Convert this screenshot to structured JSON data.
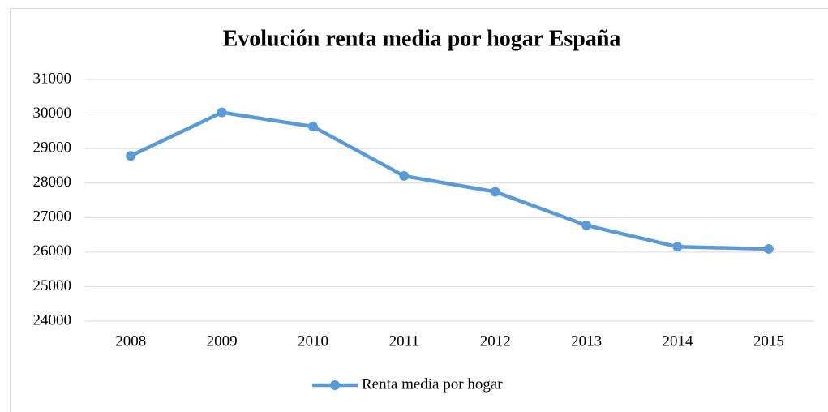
{
  "chart_data": {
    "type": "line",
    "title": "Evolución renta media por hogar España",
    "categories": [
      "2008",
      "2009",
      "2010",
      "2011",
      "2012",
      "2013",
      "2014",
      "2015"
    ],
    "series": [
      {
        "name": "Renta media por hogar",
        "color": "#5b9bd5",
        "values": [
          28787,
          30045,
          29634,
          28206,
          27747,
          26775,
          26154,
          26092
        ]
      }
    ],
    "ylim": [
      24000,
      31000
    ],
    "yticks": [
      24000,
      25000,
      26000,
      27000,
      28000,
      29000,
      30000,
      31000
    ],
    "grid": true,
    "legend": "bottom"
  }
}
